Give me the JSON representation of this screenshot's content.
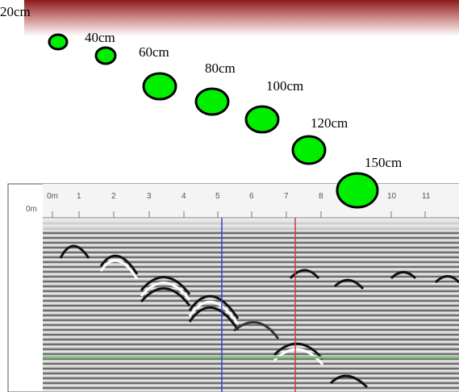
{
  "depth_markers": [
    "20cm",
    "40cm",
    "60cm",
    "80cm",
    "100cm",
    "120cm",
    "150cm"
  ],
  "radargram": {
    "distance_labels": [
      "0m",
      "1",
      "2",
      "3",
      "4",
      "5",
      "6",
      "7",
      "8",
      "10",
      "11"
    ],
    "depth_label": "0m"
  }
}
